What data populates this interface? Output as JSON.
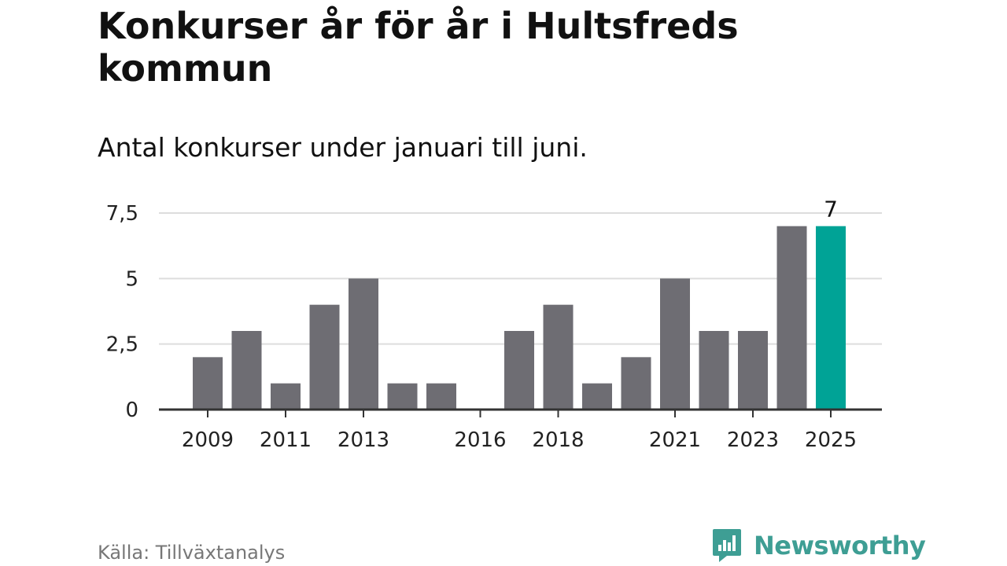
{
  "title": "Konkurser år för år i Hultsfreds kommun",
  "subtitle": "Antal konkurser under januari till juni.",
  "source": "Källa: Tillväxtanalys",
  "brand": {
    "name": "Newsworthy",
    "icon": "newsworthy-chart-logo-icon",
    "color": "#3e9e94"
  },
  "colors": {
    "bar": "#6e6d73",
    "highlight": "#00a396",
    "grid": "#dddddd",
    "axis": "#333333"
  },
  "chart_data": {
    "type": "bar",
    "categories": [
      "2009",
      "2010",
      "2011",
      "2012",
      "2013",
      "2014",
      "2015",
      "2016",
      "2017",
      "2018",
      "2019",
      "2020",
      "2021",
      "2022",
      "2023",
      "2024",
      "2025"
    ],
    "values": [
      2,
      3,
      1,
      4,
      5,
      1,
      1,
      0,
      3,
      4,
      1,
      2,
      5,
      3,
      3,
      7,
      7
    ],
    "highlight_category": "2025",
    "highlight_label": "7",
    "x_tick_labels": [
      "2009",
      "2011",
      "2013",
      "2016",
      "2018",
      "2021",
      "2023",
      "2025"
    ],
    "y_ticks": [
      0,
      2.5,
      5,
      7.5
    ],
    "y_tick_labels": [
      "0",
      "2,5",
      "5",
      "7,5"
    ],
    "ylim": [
      0,
      7.5
    ],
    "grid": true,
    "legend": "none"
  }
}
